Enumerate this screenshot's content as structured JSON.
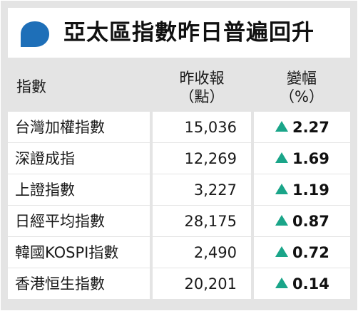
{
  "colors": {
    "background": "#e4e4e4",
    "panel": "#ffffff",
    "accent": "#1e6fb8",
    "up_arrow": "#1aa589"
  },
  "title": "亞太區指數昨日普遍回升",
  "icon": "speech-bubble-icon",
  "header": {
    "index": "指數",
    "close_line1": "昨收報",
    "close_line2": "（點）",
    "change_line1": "變幅",
    "change_line2": "（%）"
  },
  "chart_data": {
    "type": "table",
    "title": "亞太區指數昨日普遍回升",
    "columns": [
      "指數",
      "昨收報（點）",
      "變幅（%）"
    ],
    "rows": [
      {
        "name": "台灣加權指數",
        "close": "15,036",
        "change": "2.27",
        "direction": "up"
      },
      {
        "name": "深證成指",
        "close": "12,269",
        "change": "1.69",
        "direction": "up"
      },
      {
        "name": "上證指數",
        "close": "3,227",
        "change": "1.19",
        "direction": "up"
      },
      {
        "name": "日經平均指數",
        "close": "28,175",
        "change": "0.87",
        "direction": "up"
      },
      {
        "name": "韓國KOSPI指數",
        "close": "2,490",
        "change": "0.72",
        "direction": "up"
      },
      {
        "name": "香港恒生指數",
        "close": "20,201",
        "change": "0.14",
        "direction": "up"
      }
    ]
  }
}
